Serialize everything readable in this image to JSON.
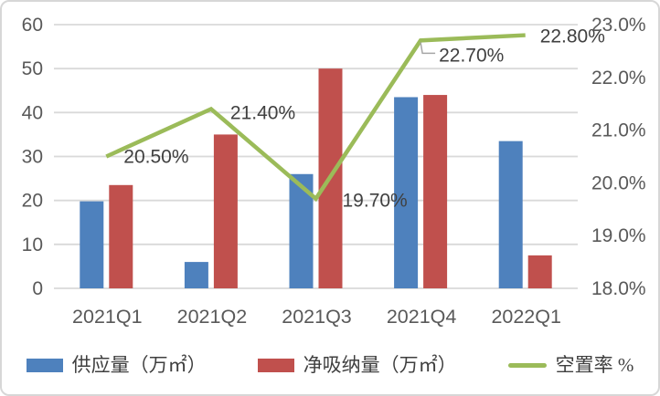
{
  "chart_data": {
    "type": "bar",
    "subtype": "bar-line-combo",
    "title": "",
    "categories": [
      "2021Q1",
      "2021Q2",
      "2021Q3",
      "2021Q4",
      "2022Q1"
    ],
    "series": [
      {
        "name": "供应量（万㎡）",
        "type": "bar",
        "axis": "left",
        "color": "#4E81BD",
        "values": [
          19.8,
          6,
          26,
          43.5,
          33.5
        ]
      },
      {
        "name": "净吸纳量（万㎡）",
        "type": "bar",
        "axis": "left",
        "color": "#C0504D",
        "values": [
          23.5,
          35,
          50,
          44,
          7.5
        ]
      },
      {
        "name": "空置率 %",
        "type": "line",
        "axis": "right",
        "color": "#9BBB59",
        "values": [
          20.5,
          21.4,
          19.7,
          22.7,
          22.8
        ],
        "labels": [
          "20.50%",
          "21.40%",
          "19.70%",
          "22.70%",
          "22.80%"
        ]
      }
    ],
    "left_axis": {
      "min": 0,
      "max": 60,
      "step": 10,
      "ticks": [
        "0",
        "10",
        "20",
        "30",
        "40",
        "50",
        "60"
      ]
    },
    "right_axis": {
      "min": 18,
      "max": 23,
      "step": 1,
      "ticks": [
        "18.0%",
        "19.0%",
        "20.0%",
        "21.0%",
        "22.0%",
        "23.0%"
      ]
    },
    "grid": true,
    "legend_position": "bottom",
    "colors": {
      "gridline": "#D9D9D9",
      "axis_text": "#595959",
      "data_label_text": "#404040",
      "leader_line": "#A6A6A6"
    }
  }
}
